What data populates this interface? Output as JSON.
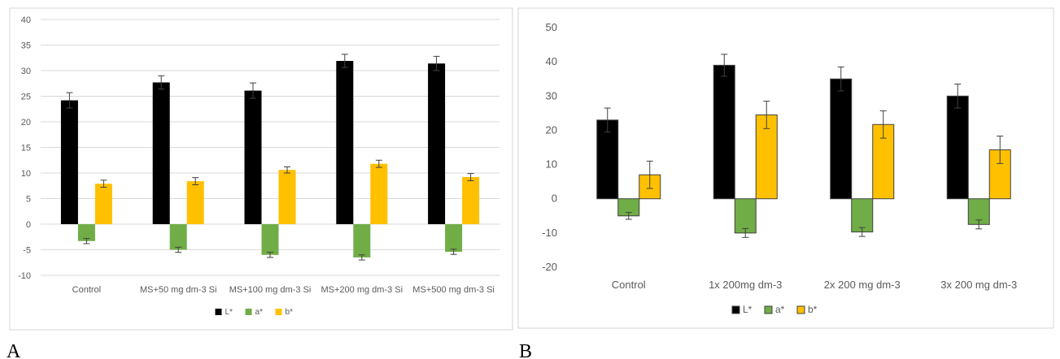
{
  "chart_data": [
    {
      "panel": "A",
      "type": "bar",
      "categories": [
        "Control",
        "MS+50 mg dm-3 Si",
        "MS+100 mg dm-3 Si",
        "MS+200 mg dm-3 Si",
        "MS+500 mg dm-3 Si"
      ],
      "ylim": [
        -10,
        40
      ],
      "yticks": [
        -10,
        -5,
        0,
        5,
        10,
        15,
        20,
        25,
        30,
        35,
        40
      ],
      "grid": true,
      "legend_position": "bottom",
      "series": [
        {
          "name": "L*",
          "color": "#000000",
          "values": [
            24.2,
            27.7,
            26.1,
            31.9,
            31.4
          ],
          "errors": [
            1.5,
            1.3,
            1.5,
            1.3,
            1.4
          ]
        },
        {
          "name": "a*",
          "color": "#70ad47",
          "values": [
            -3.3,
            -5.0,
            -6.0,
            -6.5,
            -5.4
          ],
          "errors": [
            0.5,
            0.5,
            0.5,
            0.5,
            0.5
          ]
        },
        {
          "name": "b*",
          "color": "#ffc000",
          "values": [
            7.9,
            8.4,
            10.6,
            11.8,
            9.2
          ],
          "errors": [
            0.7,
            0.7,
            0.6,
            0.7,
            0.7
          ]
        }
      ]
    },
    {
      "panel": "B",
      "type": "bar",
      "categories": [
        "Control",
        "1x 200mg dm-3",
        "2x 200 mg dm-3",
        "3x 200 mg dm-3"
      ],
      "ylim": [
        -20,
        50
      ],
      "yticks": [
        -20,
        -10,
        0,
        10,
        20,
        30,
        40,
        50
      ],
      "grid": false,
      "legend_position": "bottom",
      "series": [
        {
          "name": "L*",
          "color": "#000000",
          "values": [
            23.0,
            39.0,
            35.0,
            30.0
          ],
          "errors": [
            3.5,
            3.2,
            3.5,
            3.5
          ]
        },
        {
          "name": "a*",
          "color": "#70ad47",
          "values": [
            -5.0,
            -10.0,
            -9.7,
            -7.5
          ],
          "errors": [
            1.0,
            1.3,
            1.3,
            1.3
          ]
        },
        {
          "name": "b*",
          "color": "#ffc000",
          "values": [
            7.0,
            24.5,
            21.7,
            14.3
          ],
          "errors": [
            4.0,
            4.0,
            4.0,
            4.0
          ]
        }
      ]
    }
  ],
  "labels": {
    "panel_a": "A",
    "panel_b": "B"
  }
}
